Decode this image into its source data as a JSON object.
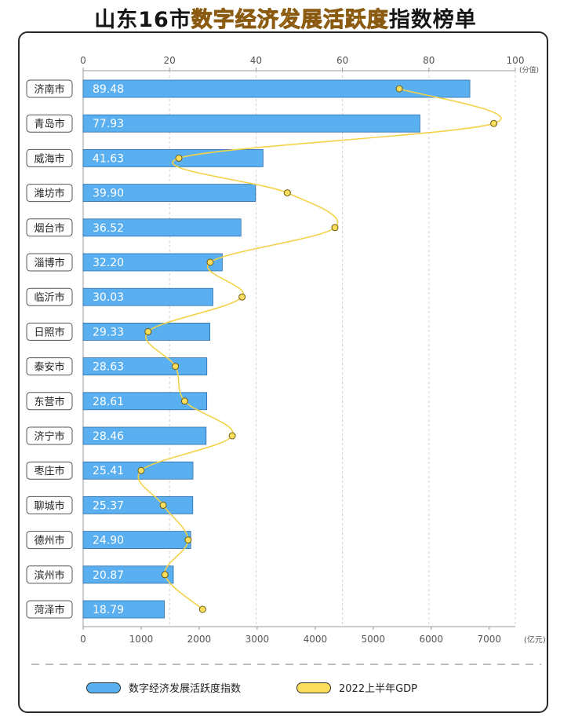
{
  "title": {
    "part1": "山东16市",
    "part2": "数字经济发展活跃度",
    "part3": "指数榜单"
  },
  "chart_data": {
    "type": "bar",
    "orientation": "horizontal",
    "categories": [
      "济南市",
      "青岛市",
      "威海市",
      "潍坊市",
      "烟台市",
      "淄博市",
      "临沂市",
      "日照市",
      "泰安市",
      "东营市",
      "济宁市",
      "枣庄市",
      "聊城市",
      "德州市",
      "滨州市",
      "菏泽市"
    ],
    "series": [
      {
        "name": "数字经济发展活跃度指数",
        "type": "bar",
        "axis": "top",
        "color": "#59aff0",
        "values": [
          89.48,
          77.93,
          41.63,
          39.9,
          36.52,
          32.2,
          30.03,
          29.33,
          28.63,
          28.61,
          28.46,
          25.41,
          25.37,
          24.9,
          20.87,
          18.79
        ]
      },
      {
        "name": "2022上半年GDP",
        "type": "line",
        "smooth": true,
        "axis": "bottom",
        "color": "#fdde5c",
        "values": [
          5450,
          7080,
          1650,
          3520,
          4340,
          2190,
          2740,
          1120,
          1590,
          1750,
          2570,
          1000,
          1380,
          1810,
          1410,
          2060
        ]
      }
    ],
    "axes": {
      "top": {
        "ticks": [
          0,
          20,
          40,
          60,
          80,
          100
        ],
        "range": [
          0,
          100
        ],
        "unit": "(分值)"
      },
      "bottom": {
        "ticks": [
          0,
          1000,
          2000,
          3000,
          4000,
          5000,
          6000,
          7000
        ],
        "range": [
          0,
          7450
        ],
        "unit": "(亿元)"
      }
    },
    "grid": "vertical dashed"
  },
  "legend": {
    "bar_label": "数字经济发展活跃度指数",
    "line_label": "2022上半年GDP"
  }
}
